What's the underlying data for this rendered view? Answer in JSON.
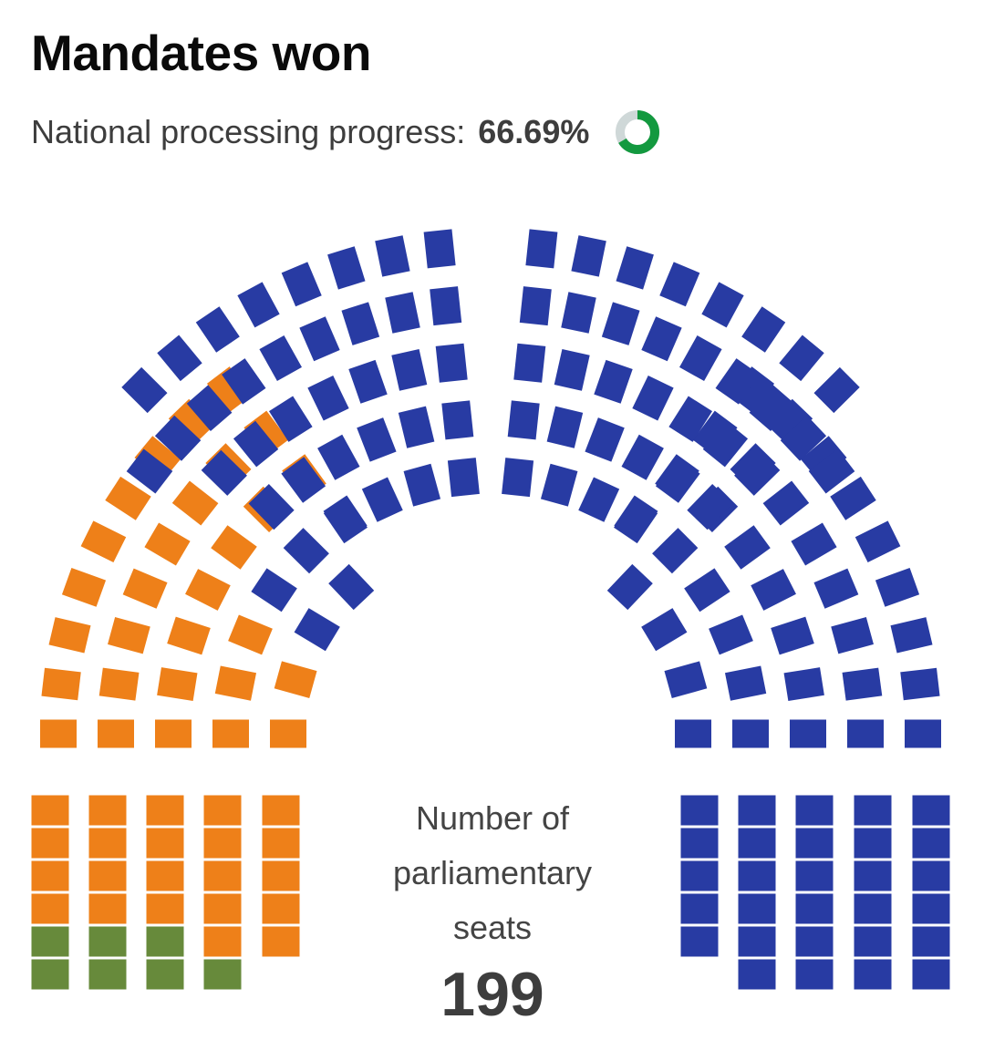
{
  "header": {
    "title": "Mandates won",
    "progress_label": "National processing progress:",
    "progress_value": "66.69%",
    "progress_fraction": 0.6669
  },
  "summary": {
    "label": "Number of parliamentary seats",
    "total": "199"
  },
  "colors": {
    "orange": "#ee8019",
    "blue": "#283ba3",
    "green": "#678a3b",
    "ring_fill": "#13993f",
    "ring_track": "#cfd8d8"
  },
  "seats": {
    "total": 199,
    "blocks": [
      {
        "color": "orange",
        "count": 65
      },
      {
        "color": "green",
        "count": 4
      },
      {
        "color": "blue",
        "count": 130
      }
    ]
  }
}
